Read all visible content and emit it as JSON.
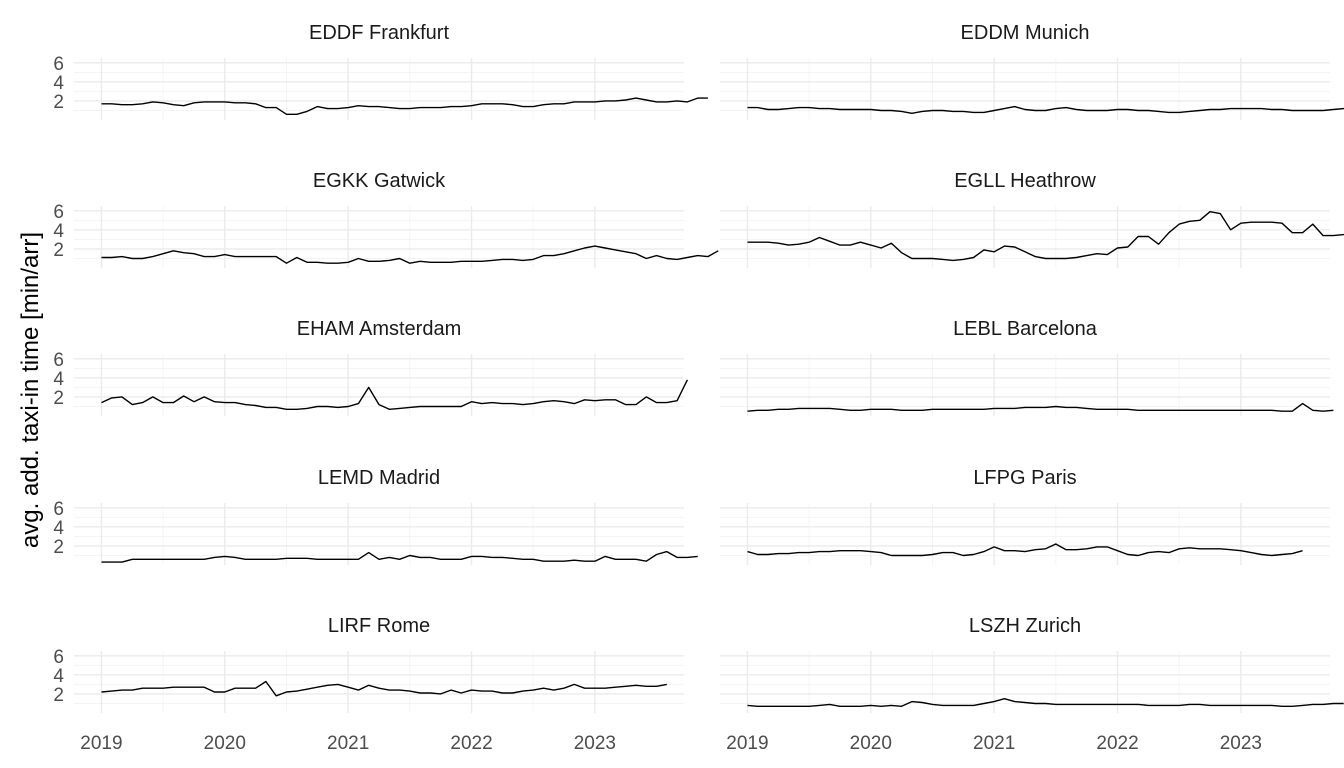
{
  "chart_data": {
    "type": "line",
    "ylabel": "avg. add. taxi-in time [min/arr]",
    "xlabel": "",
    "x_ticks": [
      "2019",
      "2020",
      "2021",
      "2022",
      "2023"
    ],
    "y_ticks": [
      "2",
      "4",
      "6"
    ],
    "xlim": [
      2019,
      2023.5
    ],
    "ylim": [
      0,
      6.5
    ],
    "grid": true,
    "legend": "none",
    "panels": [
      {
        "title": "EDDF Frankfurt",
        "x_start": 2019.0,
        "values": [
          1.7,
          1.7,
          1.6,
          1.6,
          1.7,
          1.9,
          1.8,
          1.6,
          1.5,
          1.8,
          1.9,
          1.9,
          1.9,
          1.8,
          1.8,
          1.7,
          1.3,
          1.3,
          0.6,
          0.6,
          0.9,
          1.4,
          1.2,
          1.2,
          1.3,
          1.5,
          1.4,
          1.4,
          1.3,
          1.2,
          1.2,
          1.3,
          1.3,
          1.3,
          1.4,
          1.4,
          1.5,
          1.7,
          1.7,
          1.7,
          1.6,
          1.4,
          1.4,
          1.6,
          1.7,
          1.7,
          1.9,
          1.9,
          1.9,
          2.0,
          2.0,
          2.1,
          2.3,
          2.1,
          1.9,
          1.9,
          2.0,
          1.9,
          2.3,
          2.3
        ]
      },
      {
        "title": "EDDM Munich",
        "x_start": 2019.0,
        "values": [
          1.3,
          1.3,
          1.1,
          1.1,
          1.2,
          1.3,
          1.3,
          1.2,
          1.2,
          1.1,
          1.1,
          1.1,
          1.1,
          1.0,
          1.0,
          0.9,
          0.7,
          0.9,
          1.0,
          1.0,
          0.9,
          0.9,
          0.8,
          0.8,
          1.0,
          1.2,
          1.4,
          1.1,
          1.0,
          1.0,
          1.2,
          1.3,
          1.1,
          1.0,
          1.0,
          1.0,
          1.1,
          1.1,
          1.0,
          1.0,
          0.9,
          0.8,
          0.8,
          0.9,
          1.0,
          1.1,
          1.1,
          1.2,
          1.2,
          1.2,
          1.2,
          1.1,
          1.1,
          1.0,
          1.0,
          1.0,
          1.0,
          1.1,
          1.2,
          1.2
        ]
      },
      {
        "title": "EGKK Gatwick",
        "x_start": 2019.0,
        "values": [
          1.1,
          1.1,
          1.2,
          1.0,
          1.0,
          1.2,
          1.5,
          1.8,
          1.6,
          1.5,
          1.2,
          1.2,
          1.4,
          1.2,
          1.2,
          1.2,
          1.2,
          1.2,
          0.5,
          1.1,
          0.6,
          0.6,
          0.5,
          0.5,
          0.6,
          1.0,
          0.7,
          0.7,
          0.8,
          1.0,
          0.5,
          0.7,
          0.6,
          0.6,
          0.6,
          0.7,
          0.7,
          0.7,
          0.8,
          0.9,
          0.9,
          0.8,
          0.9,
          1.3,
          1.3,
          1.5,
          1.8,
          2.1,
          2.3,
          2.1,
          1.9,
          1.7,
          1.5,
          1.0,
          1.3,
          1.0,
          0.9,
          1.1,
          1.3,
          1.2,
          1.8
        ]
      },
      {
        "title": "EGLL Heathrow",
        "x_start": 2019.0,
        "values": [
          2.7,
          2.7,
          2.7,
          2.6,
          2.4,
          2.5,
          2.7,
          3.2,
          2.8,
          2.4,
          2.4,
          2.7,
          2.4,
          2.1,
          2.6,
          1.6,
          1.0,
          1.0,
          1.0,
          0.9,
          0.8,
          0.9,
          1.1,
          1.9,
          1.7,
          2.3,
          2.2,
          1.7,
          1.2,
          1.0,
          1.0,
          1.0,
          1.1,
          1.3,
          1.5,
          1.4,
          2.1,
          2.2,
          3.3,
          3.3,
          2.5,
          3.7,
          4.6,
          4.9,
          5.0,
          5.9,
          5.7,
          4.0,
          4.7,
          4.8,
          4.8,
          4.8,
          4.7,
          3.7,
          3.7,
          4.6,
          3.4,
          3.4,
          3.5,
          3.6
        ]
      },
      {
        "title": "EHAM Amsterdam",
        "x_start": 2019.0,
        "values": [
          1.4,
          1.9,
          2.0,
          1.2,
          1.4,
          2.0,
          1.4,
          1.4,
          2.1,
          1.5,
          2.0,
          1.5,
          1.4,
          1.4,
          1.2,
          1.1,
          0.9,
          0.9,
          0.7,
          0.7,
          0.8,
          1.0,
          1.0,
          0.9,
          1.0,
          1.3,
          3.0,
          1.2,
          0.7,
          0.8,
          0.9,
          1.0,
          1.0,
          1.0,
          1.0,
          1.0,
          1.5,
          1.3,
          1.4,
          1.3,
          1.3,
          1.2,
          1.3,
          1.5,
          1.6,
          1.5,
          1.3,
          1.7,
          1.6,
          1.7,
          1.7,
          1.2,
          1.2,
          2.0,
          1.4,
          1.4,
          1.6,
          3.8
        ]
      },
      {
        "title": "LEBL Barcelona",
        "x_start": 2019.0,
        "values": [
          0.5,
          0.6,
          0.6,
          0.7,
          0.7,
          0.8,
          0.8,
          0.8,
          0.8,
          0.7,
          0.6,
          0.6,
          0.7,
          0.7,
          0.7,
          0.6,
          0.6,
          0.6,
          0.7,
          0.7,
          0.7,
          0.7,
          0.7,
          0.7,
          0.8,
          0.8,
          0.8,
          0.9,
          0.9,
          0.9,
          1.0,
          0.9,
          0.9,
          0.8,
          0.7,
          0.7,
          0.7,
          0.7,
          0.6,
          0.6,
          0.6,
          0.6,
          0.6,
          0.6,
          0.6,
          0.6,
          0.6,
          0.6,
          0.6,
          0.6,
          0.6,
          0.6,
          0.5,
          0.5,
          1.3,
          0.6,
          0.5,
          0.6
        ]
      },
      {
        "title": "LEMD Madrid",
        "x_start": 2019.0,
        "values": [
          0.3,
          0.3,
          0.3,
          0.6,
          0.6,
          0.6,
          0.6,
          0.6,
          0.6,
          0.6,
          0.6,
          0.8,
          0.9,
          0.8,
          0.6,
          0.6,
          0.6,
          0.6,
          0.7,
          0.7,
          0.7,
          0.6,
          0.6,
          0.6,
          0.6,
          0.6,
          1.3,
          0.6,
          0.8,
          0.6,
          1.0,
          0.8,
          0.8,
          0.6,
          0.6,
          0.6,
          0.9,
          0.9,
          0.8,
          0.8,
          0.7,
          0.6,
          0.6,
          0.4,
          0.4,
          0.4,
          0.5,
          0.4,
          0.4,
          0.9,
          0.6,
          0.6,
          0.6,
          0.4,
          1.1,
          1.4,
          0.8,
          0.8,
          0.9
        ]
      },
      {
        "title": "LFPG Paris",
        "x_start": 2019.0,
        "values": [
          1.4,
          1.1,
          1.1,
          1.2,
          1.2,
          1.3,
          1.3,
          1.4,
          1.4,
          1.5,
          1.5,
          1.5,
          1.4,
          1.3,
          1.0,
          1.0,
          1.0,
          1.0,
          1.1,
          1.3,
          1.3,
          1.0,
          1.1,
          1.4,
          1.9,
          1.5,
          1.5,
          1.4,
          1.6,
          1.7,
          2.2,
          1.6,
          1.6,
          1.7,
          1.9,
          1.9,
          1.5,
          1.1,
          1.0,
          1.3,
          1.4,
          1.3,
          1.7,
          1.8,
          1.7,
          1.7,
          1.7,
          1.6,
          1.5,
          1.3,
          1.1,
          1.0,
          1.1,
          1.2,
          1.5
        ]
      },
      {
        "title": "LIRF Rome",
        "x_start": 2019.0,
        "values": [
          2.2,
          2.3,
          2.4,
          2.4,
          2.6,
          2.6,
          2.6,
          2.7,
          2.7,
          2.7,
          2.7,
          2.2,
          2.2,
          2.6,
          2.6,
          2.6,
          3.3,
          1.8,
          2.2,
          2.3,
          2.5,
          2.7,
          2.9,
          3.0,
          2.7,
          2.4,
          2.9,
          2.6,
          2.4,
          2.4,
          2.3,
          2.1,
          2.1,
          2.0,
          2.4,
          2.1,
          2.4,
          2.3,
          2.3,
          2.1,
          2.1,
          2.3,
          2.4,
          2.6,
          2.4,
          2.6,
          3.0,
          2.6,
          2.6,
          2.6,
          2.7,
          2.8,
          2.9,
          2.8,
          2.8,
          3.0
        ]
      },
      {
        "title": "LSZH Zurich",
        "x_start": 2019.0,
        "values": [
          0.8,
          0.7,
          0.7,
          0.7,
          0.7,
          0.7,
          0.7,
          0.8,
          0.9,
          0.7,
          0.7,
          0.7,
          0.8,
          0.7,
          0.8,
          0.7,
          1.2,
          1.1,
          0.9,
          0.8,
          0.8,
          0.8,
          0.8,
          1.0,
          1.2,
          1.5,
          1.2,
          1.1,
          1.0,
          1.0,
          0.9,
          0.9,
          0.9,
          0.9,
          0.9,
          0.9,
          0.9,
          0.9,
          0.9,
          0.8,
          0.8,
          0.8,
          0.8,
          0.9,
          0.9,
          0.8,
          0.8,
          0.8,
          0.8,
          0.8,
          0.8,
          0.8,
          0.7,
          0.7,
          0.8,
          0.9,
          0.9,
          1.0,
          1.0
        ]
      }
    ]
  }
}
